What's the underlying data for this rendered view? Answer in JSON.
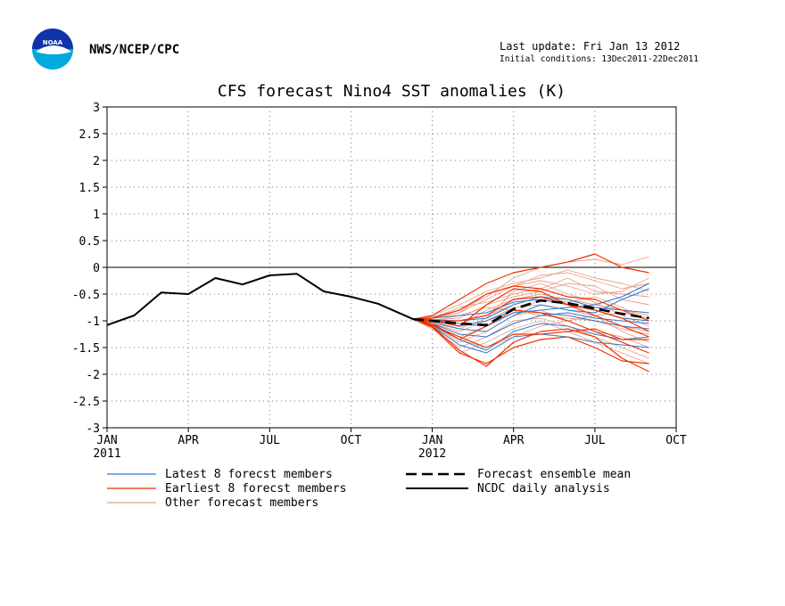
{
  "header": {
    "org": "NWS/NCEP/CPC",
    "last_update": "Last update: Fri Jan 13 2012",
    "initial_conditions": "Initial conditions: 13Dec2011-22Dec2011",
    "logo_text": "NOAA"
  },
  "chart_data": {
    "type": "line",
    "title": "CFS forecast Nino4 SST anomalies (K)",
    "xlabel": "",
    "ylabel": "",
    "ylim": [
      -3,
      3
    ],
    "y_ticks": [
      "3",
      "2.5",
      "2",
      "1.5",
      "1",
      "0.5",
      "0",
      "-0.5",
      "-1",
      "-1.5",
      "-2",
      "-2.5",
      "-3"
    ],
    "x_ticks": [
      {
        "label": "JAN",
        "sub": "2011",
        "month": 0
      },
      {
        "label": "APR",
        "sub": "",
        "month": 3
      },
      {
        "label": "JUL",
        "sub": "",
        "month": 6
      },
      {
        "label": "OCT",
        "sub": "",
        "month": 9
      },
      {
        "label": "JAN",
        "sub": "2012",
        "month": 12
      },
      {
        "label": "APR",
        "sub": "",
        "month": 15
      },
      {
        "label": "JUL",
        "sub": "",
        "month": 18
      },
      {
        "label": "OCT",
        "sub": "",
        "month": 21
      }
    ],
    "xlim_months": [
      0,
      21
    ],
    "grid": true,
    "zero_line": true,
    "colors": {
      "title": "#ee0000",
      "latest": "#3377cc",
      "earliest": "#ee3300",
      "other": "#e8a088",
      "ensemble": "#000000",
      "analysis": "#000000"
    },
    "legend": {
      "position": "bottom",
      "items": [
        {
          "key": "latest",
          "label": "Latest 8 forecst members"
        },
        {
          "key": "earliest",
          "label": "Earliest 8 forecst members"
        },
        {
          "key": "other",
          "label": "Other forecast members"
        },
        {
          "key": "ensemble",
          "label": "Forecast ensemble mean"
        },
        {
          "key": "analysis",
          "label": "NCDC daily analysis"
        }
      ]
    },
    "forecast_x": [
      11.3,
      12,
      13,
      14,
      15,
      16,
      17,
      18,
      19,
      20
    ],
    "series": [
      {
        "group": "analysis",
        "x": [
          0,
          1,
          2,
          3,
          4,
          5,
          6,
          7,
          8,
          9,
          10,
          11.3
        ],
        "y": [
          -1.08,
          -0.9,
          -0.47,
          -0.5,
          -0.2,
          -0.32,
          -0.15,
          -0.12,
          -0.45,
          -0.55,
          -0.68,
          -0.97
        ]
      },
      {
        "group": "other",
        "y": [
          -0.97,
          -0.9,
          -0.7,
          -0.45,
          -0.3,
          -0.2,
          -0.05,
          -0.2,
          -0.3,
          -0.45
        ]
      },
      {
        "group": "other",
        "y": [
          -0.97,
          -0.95,
          -0.85,
          -0.6,
          -0.35,
          -0.25,
          -0.35,
          -0.5,
          -0.45,
          -0.2
        ]
      },
      {
        "group": "other",
        "y": [
          -0.97,
          -1.0,
          -1.1,
          -0.8,
          -0.6,
          -0.5,
          -0.6,
          -0.7,
          -0.8,
          -0.9
        ]
      },
      {
        "group": "other",
        "y": [
          -0.97,
          -1.05,
          -1.2,
          -1.0,
          -0.75,
          -0.7,
          -0.8,
          -0.9,
          -1.1,
          -1.2
        ]
      },
      {
        "group": "other",
        "y": [
          -0.97,
          -1.1,
          -1.4,
          -1.2,
          -0.9,
          -0.8,
          -1.0,
          -1.2,
          -1.3,
          -1.5
        ]
      },
      {
        "group": "other",
        "y": [
          -0.97,
          -1.15,
          -1.5,
          -1.3,
          -1.0,
          -0.95,
          -1.1,
          -1.3,
          -1.5,
          -1.7
        ]
      },
      {
        "group": "other",
        "y": [
          -0.97,
          -0.92,
          -0.8,
          -0.55,
          -0.2,
          0.0,
          0.1,
          0.15,
          0.05,
          0.2
        ]
      },
      {
        "group": "other",
        "y": [
          -0.97,
          -0.98,
          -0.95,
          -0.7,
          -0.55,
          -0.45,
          -0.3,
          -0.35,
          -0.6,
          -0.7
        ]
      },
      {
        "group": "other",
        "y": [
          -0.97,
          -1.02,
          -1.0,
          -0.9,
          -0.7,
          -0.55,
          -0.65,
          -0.55,
          -0.75,
          -1.0
        ]
      },
      {
        "group": "other",
        "y": [
          -0.97,
          -1.08,
          -1.3,
          -1.1,
          -0.85,
          -0.6,
          -0.7,
          -0.9,
          -1.2,
          -1.4
        ]
      },
      {
        "group": "other",
        "y": [
          -0.97,
          -1.12,
          -1.6,
          -1.4,
          -1.15,
          -1.0,
          -1.2,
          -1.4,
          -1.6,
          -1.8
        ]
      },
      {
        "group": "other",
        "y": [
          -0.97,
          -0.95,
          -0.75,
          -0.65,
          -0.5,
          -0.4,
          -0.2,
          -0.45,
          -0.5,
          -0.55
        ]
      },
      {
        "group": "other",
        "y": [
          -0.97,
          -1.0,
          -0.9,
          -0.75,
          -0.8,
          -0.9,
          -0.95,
          -1.0,
          -1.15,
          -1.25
        ]
      },
      {
        "group": "other",
        "y": [
          -0.97,
          -1.05,
          -1.15,
          -0.95,
          -0.45,
          -0.3,
          -0.5,
          -0.65,
          -0.9,
          -1.1
        ]
      },
      {
        "group": "other",
        "y": [
          -0.97,
          -1.1,
          -1.35,
          -1.5,
          -1.3,
          -1.1,
          -1.0,
          -0.9,
          -0.85,
          -0.95
        ]
      },
      {
        "group": "other",
        "y": [
          -0.97,
          -0.93,
          -0.85,
          -0.5,
          -0.35,
          -0.15,
          -0.1,
          -0.25,
          -0.4,
          -0.3
        ]
      },
      {
        "group": "latest",
        "y": [
          -0.97,
          -1.0,
          -1.05,
          -1.1,
          -0.85,
          -0.8,
          -0.75,
          -0.7,
          -0.55,
          -0.3
        ]
      },
      {
        "group": "latest",
        "y": [
          -0.97,
          -1.05,
          -1.25,
          -1.3,
          -1.05,
          -0.9,
          -0.85,
          -0.95,
          -1.0,
          -1.05
        ]
      },
      {
        "group": "latest",
        "y": [
          -0.97,
          -1.1,
          -1.45,
          -1.6,
          -1.3,
          -1.25,
          -1.3,
          -1.4,
          -1.45,
          -1.5
        ]
      },
      {
        "group": "latest",
        "y": [
          -0.97,
          -0.98,
          -1.0,
          -0.95,
          -0.7,
          -0.55,
          -0.6,
          -0.75,
          -0.8,
          -0.85
        ]
      },
      {
        "group": "latest",
        "y": [
          -0.97,
          -1.02,
          -1.15,
          -1.2,
          -0.9,
          -0.7,
          -0.8,
          -0.85,
          -0.6,
          -0.4
        ]
      },
      {
        "group": "latest",
        "y": [
          -0.97,
          -1.08,
          -1.35,
          -1.55,
          -1.2,
          -1.05,
          -1.1,
          -1.25,
          -1.35,
          -1.3
        ]
      },
      {
        "group": "latest",
        "y": [
          -0.97,
          -0.95,
          -0.9,
          -0.85,
          -0.65,
          -0.6,
          -0.7,
          -0.8,
          -0.95,
          -1.0
        ]
      },
      {
        "group": "latest",
        "y": [
          -0.97,
          -1.0,
          -1.1,
          -1.0,
          -0.8,
          -0.85,
          -0.9,
          -1.0,
          -1.1,
          -1.15
        ]
      },
      {
        "group": "earliest",
        "y": [
          -0.97,
          -0.9,
          -0.6,
          -0.3,
          -0.1,
          0.0,
          0.1,
          0.25,
          0.0,
          -0.1
        ]
      },
      {
        "group": "earliest",
        "y": [
          -0.97,
          -0.95,
          -0.8,
          -0.5,
          -0.35,
          -0.4,
          -0.55,
          -0.6,
          -0.8,
          -1.0
        ]
      },
      {
        "group": "earliest",
        "y": [
          -0.97,
          -1.0,
          -1.1,
          -0.7,
          -0.4,
          -0.45,
          -0.7,
          -0.9,
          -1.1,
          -1.3
        ]
      },
      {
        "group": "earliest",
        "y": [
          -0.97,
          -1.05,
          -1.35,
          -1.1,
          -0.8,
          -0.85,
          -1.0,
          -1.2,
          -1.4,
          -1.6
        ]
      },
      {
        "group": "earliest",
        "y": [
          -0.97,
          -1.1,
          -1.55,
          -1.85,
          -1.4,
          -1.2,
          -1.15,
          -1.3,
          -1.7,
          -1.95
        ]
      },
      {
        "group": "earliest",
        "y": [
          -0.97,
          -1.08,
          -1.3,
          -1.5,
          -1.25,
          -1.25,
          -1.2,
          -1.15,
          -1.35,
          -1.35
        ]
      },
      {
        "group": "earliest",
        "y": [
          -0.97,
          -1.0,
          -1.0,
          -0.9,
          -0.6,
          -0.55,
          -0.7,
          -0.8,
          -0.95,
          -1.2
        ]
      },
      {
        "group": "earliest",
        "y": [
          -0.97,
          -1.12,
          -1.6,
          -1.8,
          -1.5,
          -1.35,
          -1.3,
          -1.5,
          -1.75,
          -1.8
        ]
      },
      {
        "group": "ensemble",
        "x": [
          11.3,
          12,
          13,
          14,
          15,
          16,
          17,
          18,
          19,
          20
        ],
        "y": [
          -0.97,
          -1.0,
          -1.05,
          -1.08,
          -0.78,
          -0.62,
          -0.67,
          -0.77,
          -0.87,
          -0.95
        ]
      }
    ]
  }
}
